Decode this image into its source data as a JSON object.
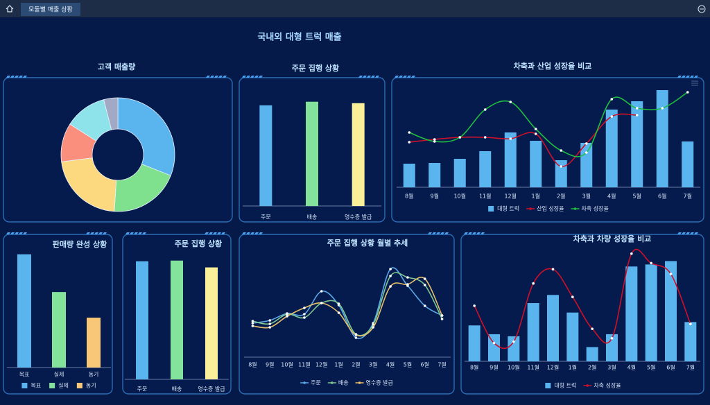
{
  "header": {
    "tab": "모듈별 매출 상황",
    "title": "국내외 대형 트럭 매출"
  },
  "chart_data": [
    {
      "type": "donut",
      "title": "고객 매출량",
      "values": [
        31,
        20,
        22,
        11,
        12,
        4
      ],
      "colors": [
        "#5ab4ee",
        "#7fe08e",
        "#fcd97e",
        "#fb8f7e",
        "#8ee3ea",
        "#a3a9c4"
      ]
    },
    {
      "type": "bar",
      "title": "주문 집행 상황",
      "categories": [
        "주문",
        "배송",
        "영수증 발급"
      ],
      "values": [
        139,
        144,
        142
      ],
      "colors": [
        "#5ab4ee",
        "#84e39a",
        "#fbf09a"
      ],
      "ylim": [
        0,
        160
      ]
    },
    {
      "type": "combo",
      "title": "차축과 산업 성장율 비교",
      "categories": [
        "8월",
        "9월",
        "10월",
        "11월",
        "12월",
        "1월",
        "2월",
        "3월",
        "4월",
        "5월",
        "6월",
        "7월"
      ],
      "series": [
        {
          "name": "대형 트럭",
          "kind": "bar",
          "color": "#5ab4ee",
          "values": [
            34,
            35,
            41,
            52,
            79,
            67,
            39,
            64,
            112,
            124,
            140,
            66
          ]
        },
        {
          "name": "산업 성장율",
          "kind": "line",
          "color": "#d0102a",
          "values": [
            65,
            69,
            72,
            72,
            70,
            77,
            30,
            63,
            102,
            104,
            null,
            null
          ]
        },
        {
          "name": "차축 성장율",
          "kind": "line",
          "color": "#1fbf3f",
          "values": [
            79,
            66,
            72,
            112,
            123,
            84,
            53,
            50,
            127,
            114,
            114,
            137
          ]
        }
      ],
      "ylim": [
        0,
        150
      ]
    },
    {
      "type": "bar",
      "title": "판매량 완성 상황",
      "categories": [
        "목표",
        "실제",
        "동기"
      ],
      "values": [
        168,
        112,
        74
      ],
      "colors": [
        "#5ab4ee",
        "#84e39a",
        "#f8c878"
      ],
      "ylim": [
        0,
        180
      ],
      "legend": true
    },
    {
      "type": "bar",
      "title": "주문 집행 상황",
      "categories": [
        "주문",
        "배송",
        "영수증 발급"
      ],
      "values": [
        173,
        174,
        164
      ],
      "colors": [
        "#5ab4ee",
        "#84e39a",
        "#fbf09a"
      ],
      "ylim": [
        0,
        190
      ]
    },
    {
      "type": "line",
      "title": "주문 집행 상황 월별 추세",
      "categories": [
        "8월",
        "9월",
        "10월",
        "11월",
        "12월",
        "1월",
        "2월",
        "3월",
        "4월",
        "5월",
        "6월",
        "7월"
      ],
      "series": [
        {
          "name": "주문",
          "color": "#5aa8e8",
          "values": [
            49,
            53,
            63,
            62,
            95,
            75,
            28,
            49,
            127,
            103,
            74,
            60
          ]
        },
        {
          "name": "배송",
          "color": "#7ec98f",
          "values": [
            52,
            48,
            62,
            57,
            78,
            77,
            33,
            47,
            117,
            115,
            104,
            55
          ]
        },
        {
          "name": "영수증 발급",
          "color": "#e6c069",
          "values": [
            45,
            43,
            59,
            71,
            78,
            64,
            32,
            43,
            102,
            105,
            113,
            60
          ]
        }
      ],
      "ylim": [
        0,
        140
      ]
    },
    {
      "type": "combo",
      "title": "차축과 차량 성장율 비교",
      "categories": [
        "8월",
        "9월",
        "10월",
        "11월",
        "12월",
        "1월",
        "2월",
        "3월",
        "4월",
        "5월",
        "6월",
        "7월"
      ],
      "series": [
        {
          "name": "대형 트럭",
          "kind": "bar",
          "color": "#5ab4ee",
          "values": [
            53,
            40,
            37,
            86,
            98,
            72,
            21,
            40,
            140,
            143,
            148,
            58
          ]
        },
        {
          "name": "차축 성장율",
          "kind": "line",
          "color": "#d0102a",
          "values": [
            82,
            27,
            29,
            115,
            136,
            95,
            48,
            34,
            159,
            145,
            129,
            55
          ]
        }
      ],
      "ylim": [
        0,
        170
      ]
    }
  ]
}
